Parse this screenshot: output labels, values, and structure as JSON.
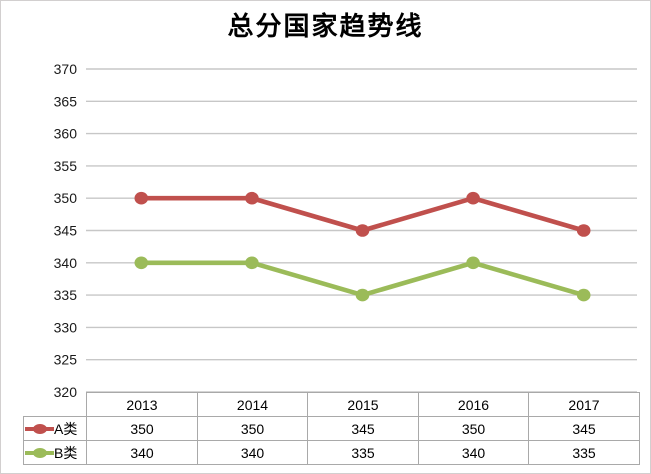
{
  "chart_data": {
    "type": "line",
    "title": "总分国家趋势线",
    "categories": [
      "2013",
      "2014",
      "2015",
      "2016",
      "2017"
    ],
    "series": [
      {
        "name": "A类",
        "color": "#C0504D",
        "values": [
          350,
          350,
          345,
          350,
          345
        ]
      },
      {
        "name": "B类",
        "color": "#9BBB59",
        "values": [
          340,
          340,
          335,
          340,
          335
        ]
      }
    ],
    "ylim": [
      320,
      370
    ],
    "y_ticks": [
      370,
      365,
      360,
      355,
      350,
      345,
      340,
      335,
      330,
      325,
      320
    ],
    "xlabel": "",
    "ylabel": "",
    "grid": "horizontal",
    "legend_position": "data-table-left",
    "data_table_shown": true
  },
  "colors": {
    "gridline": "#c7c7c7",
    "table_border": "#a9a9a9",
    "figure_border": "#d2cfcf",
    "tick_text": "#1a1a1a"
  }
}
